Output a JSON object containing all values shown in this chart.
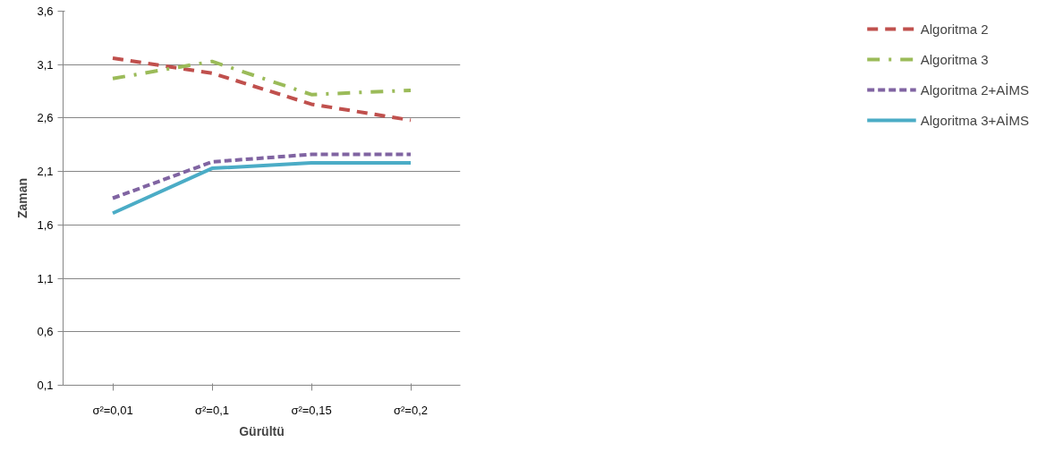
{
  "chart_data": {
    "type": "line",
    "xlabel": "Gürültü",
    "ylabel": "Zaman",
    "categories": [
      "σ²=0,01",
      "σ²=0,1",
      "σ²=0,15",
      "σ²=0,2"
    ],
    "ylim": [
      0.1,
      3.6
    ],
    "yticks": [
      {
        "value": 0.1,
        "label": "0,1"
      },
      {
        "value": 0.6,
        "label": "0,6"
      },
      {
        "value": 1.1,
        "label": "1,1"
      },
      {
        "value": 1.6,
        "label": "1,6"
      },
      {
        "value": 2.1,
        "label": "2,1"
      },
      {
        "value": 2.6,
        "label": "2,6"
      },
      {
        "value": 3.1,
        "label": "3,1"
      },
      {
        "value": 3.6,
        "label": "3,6"
      }
    ],
    "grid": "y",
    "legend": "right",
    "marker": "none",
    "series": [
      {
        "name": "Algoritma 2",
        "color": "#c0504d",
        "line_style": "dashed",
        "values": [
          3.16,
          3.02,
          2.73,
          2.58
        ]
      },
      {
        "name": "Algoritma 3",
        "color": "#9bbb59",
        "line_style": "dashdot",
        "values": [
          2.97,
          3.13,
          2.82,
          2.86
        ]
      },
      {
        "name": "Algoritma 2+AİMS",
        "color": "#8064a2",
        "line_style": "shortdash",
        "values": [
          1.85,
          2.19,
          2.26,
          2.26
        ]
      },
      {
        "name": "Algoritma 3+AİMS",
        "color": "#4bacc6",
        "line_style": "solid",
        "values": [
          1.71,
          2.13,
          2.18,
          2.18
        ]
      }
    ]
  }
}
